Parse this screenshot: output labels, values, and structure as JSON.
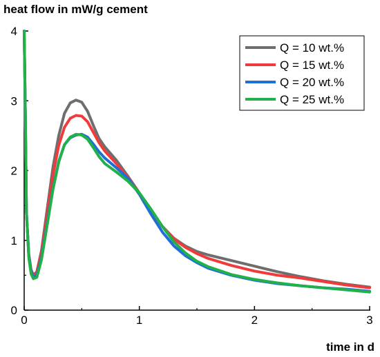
{
  "chart_data": {
    "type": "line",
    "title": "",
    "ylabel": "heat flow in mW/g cement",
    "xlabel": "time in d",
    "xlim": [
      0,
      3
    ],
    "ylim": [
      0,
      4
    ],
    "xticks": [
      0,
      1,
      2,
      3
    ],
    "yticks": [
      0,
      1,
      2,
      3,
      4
    ],
    "grid": false,
    "legend_position": "top-right",
    "series": [
      {
        "name": "Q = 10 wt.%",
        "color": "#6e6e6e",
        "points": [
          [
            0.0,
            4.0
          ],
          [
            0.01,
            2.8
          ],
          [
            0.02,
            1.4
          ],
          [
            0.04,
            0.8
          ],
          [
            0.06,
            0.58
          ],
          [
            0.08,
            0.5
          ],
          [
            0.11,
            0.55
          ],
          [
            0.15,
            0.85
          ],
          [
            0.2,
            1.45
          ],
          [
            0.25,
            2.05
          ],
          [
            0.3,
            2.5
          ],
          [
            0.35,
            2.82
          ],
          [
            0.4,
            2.97
          ],
          [
            0.45,
            3.01
          ],
          [
            0.5,
            2.98
          ],
          [
            0.55,
            2.85
          ],
          [
            0.6,
            2.65
          ],
          [
            0.65,
            2.46
          ],
          [
            0.7,
            2.34
          ],
          [
            0.8,
            2.15
          ],
          [
            0.9,
            1.92
          ],
          [
            1.0,
            1.68
          ],
          [
            1.1,
            1.42
          ],
          [
            1.2,
            1.2
          ],
          [
            1.3,
            1.03
          ],
          [
            1.4,
            0.92
          ],
          [
            1.5,
            0.84
          ],
          [
            1.6,
            0.79
          ],
          [
            1.8,
            0.71
          ],
          [
            2.0,
            0.63
          ],
          [
            2.2,
            0.55
          ],
          [
            2.4,
            0.48
          ],
          [
            2.6,
            0.42
          ],
          [
            2.8,
            0.37
          ],
          [
            3.0,
            0.33
          ]
        ]
      },
      {
        "name": "Q = 15 wt.%",
        "color": "#ef3b3b",
        "points": [
          [
            0.0,
            4.0
          ],
          [
            0.01,
            2.8
          ],
          [
            0.02,
            1.4
          ],
          [
            0.04,
            0.78
          ],
          [
            0.06,
            0.56
          ],
          [
            0.08,
            0.49
          ],
          [
            0.11,
            0.54
          ],
          [
            0.15,
            0.82
          ],
          [
            0.2,
            1.38
          ],
          [
            0.25,
            1.94
          ],
          [
            0.3,
            2.36
          ],
          [
            0.35,
            2.62
          ],
          [
            0.4,
            2.75
          ],
          [
            0.45,
            2.79
          ],
          [
            0.5,
            2.78
          ],
          [
            0.55,
            2.7
          ],
          [
            0.6,
            2.55
          ],
          [
            0.65,
            2.4
          ],
          [
            0.7,
            2.28
          ],
          [
            0.8,
            2.1
          ],
          [
            0.9,
            1.9
          ],
          [
            1.0,
            1.67
          ],
          [
            1.1,
            1.43
          ],
          [
            1.2,
            1.2
          ],
          [
            1.3,
            1.02
          ],
          [
            1.4,
            0.9
          ],
          [
            1.5,
            0.81
          ],
          [
            1.6,
            0.74
          ],
          [
            1.8,
            0.64
          ],
          [
            2.0,
            0.56
          ],
          [
            2.2,
            0.5
          ],
          [
            2.4,
            0.46
          ],
          [
            2.6,
            0.41
          ],
          [
            2.8,
            0.36
          ],
          [
            3.0,
            0.32
          ]
        ]
      },
      {
        "name": "Q = 20 wt.%",
        "color": "#1f6fd6",
        "points": [
          [
            0.0,
            4.0
          ],
          [
            0.01,
            2.8
          ],
          [
            0.02,
            1.4
          ],
          [
            0.04,
            0.78
          ],
          [
            0.06,
            0.55
          ],
          [
            0.08,
            0.47
          ],
          [
            0.11,
            0.5
          ],
          [
            0.15,
            0.75
          ],
          [
            0.2,
            1.25
          ],
          [
            0.25,
            1.75
          ],
          [
            0.3,
            2.13
          ],
          [
            0.35,
            2.37
          ],
          [
            0.4,
            2.47
          ],
          [
            0.45,
            2.51
          ],
          [
            0.5,
            2.52
          ],
          [
            0.55,
            2.48
          ],
          [
            0.6,
            2.38
          ],
          [
            0.65,
            2.27
          ],
          [
            0.7,
            2.18
          ],
          [
            0.8,
            2.04
          ],
          [
            0.9,
            1.89
          ],
          [
            1.0,
            1.66
          ],
          [
            1.1,
            1.38
          ],
          [
            1.2,
            1.12
          ],
          [
            1.3,
            0.92
          ],
          [
            1.4,
            0.78
          ],
          [
            1.5,
            0.68
          ],
          [
            1.6,
            0.6
          ],
          [
            1.8,
            0.5
          ],
          [
            2.0,
            0.43
          ],
          [
            2.2,
            0.38
          ],
          [
            2.4,
            0.35
          ],
          [
            2.6,
            0.32
          ],
          [
            2.8,
            0.3
          ],
          [
            3.0,
            0.27
          ]
        ]
      },
      {
        "name": "Q = 25 wt.%",
        "color": "#22b04a",
        "points": [
          [
            0.0,
            4.0
          ],
          [
            0.01,
            2.8
          ],
          [
            0.02,
            1.4
          ],
          [
            0.04,
            0.75
          ],
          [
            0.06,
            0.52
          ],
          [
            0.08,
            0.45
          ],
          [
            0.11,
            0.47
          ],
          [
            0.15,
            0.72
          ],
          [
            0.2,
            1.22
          ],
          [
            0.25,
            1.73
          ],
          [
            0.3,
            2.12
          ],
          [
            0.35,
            2.37
          ],
          [
            0.4,
            2.48
          ],
          [
            0.45,
            2.52
          ],
          [
            0.5,
            2.51
          ],
          [
            0.55,
            2.45
          ],
          [
            0.6,
            2.33
          ],
          [
            0.65,
            2.2
          ],
          [
            0.7,
            2.1
          ],
          [
            0.8,
            1.98
          ],
          [
            0.9,
            1.85
          ],
          [
            1.0,
            1.68
          ],
          [
            1.1,
            1.45
          ],
          [
            1.2,
            1.2
          ],
          [
            1.3,
            0.98
          ],
          [
            1.4,
            0.82
          ],
          [
            1.5,
            0.7
          ],
          [
            1.6,
            0.62
          ],
          [
            1.8,
            0.51
          ],
          [
            2.0,
            0.44
          ],
          [
            2.2,
            0.39
          ],
          [
            2.4,
            0.35
          ],
          [
            2.6,
            0.32
          ],
          [
            2.8,
            0.29
          ],
          [
            3.0,
            0.26
          ]
        ]
      }
    ]
  }
}
